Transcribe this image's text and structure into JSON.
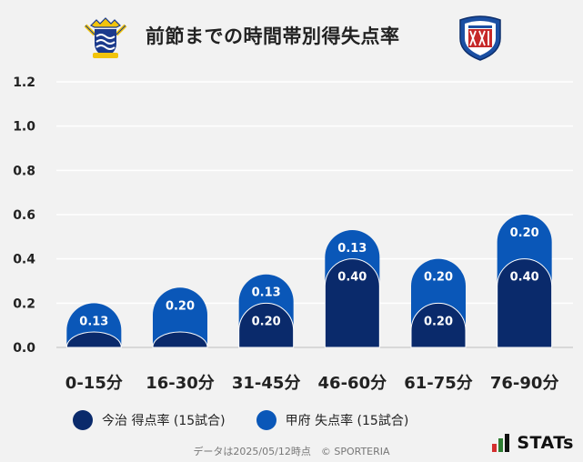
{
  "header": {
    "title": "前節までの時間帯別得失点率",
    "home_emblem": "imabari-fc-emblem",
    "away_emblem": "ventforet-kofu-emblem"
  },
  "chart_data": {
    "type": "bar",
    "stacked": true,
    "categories": [
      "0-15分",
      "16-30分",
      "31-45分",
      "46-60分",
      "61-75分",
      "76-90分"
    ],
    "series": [
      {
        "name": "今治 得点率 (15試合)",
        "color": "#0a2a6b",
        "values": [
          0.07,
          0.07,
          0.2,
          0.4,
          0.2,
          0.4
        ],
        "labels": [
          "",
          "",
          "0.20",
          "0.40",
          "0.20",
          "0.40"
        ]
      },
      {
        "name": "甲府 失点率 (15試合)",
        "color": "#0a57b8",
        "values": [
          0.13,
          0.2,
          0.13,
          0.13,
          0.2,
          0.2
        ],
        "labels": [
          "0.13",
          "0.20",
          "0.13",
          "0.13",
          "0.20",
          "0.20"
        ]
      }
    ],
    "ylim": [
      0,
      1.2
    ],
    "yticks": [
      "0.0",
      "0.2",
      "0.4",
      "0.6",
      "0.8",
      "1.0",
      "1.2"
    ],
    "grid": true
  },
  "footer": {
    "note": "データは2025/05/12時点　© SPORTERIA"
  },
  "brand": {
    "name": "STATs",
    "colors": [
      "#d32f2f",
      "#2e7d32",
      "#111111"
    ]
  }
}
